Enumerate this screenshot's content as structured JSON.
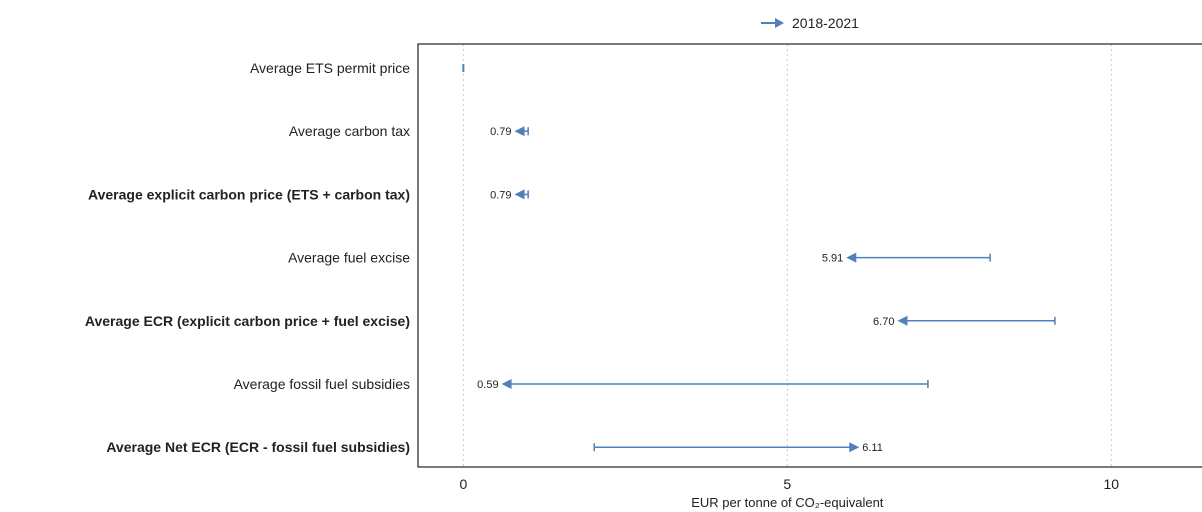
{
  "chart_data": {
    "type": "dumbbell-arrow",
    "legend": {
      "label": "2018-2021",
      "placement": "top-center"
    },
    "xlabel": "EUR per tonne of CO₂-equivalent",
    "xlim": [
      -0.7,
      11.4
    ],
    "xticks": [
      {
        "value": 0,
        "label": "0"
      },
      {
        "value": 5,
        "label": "5"
      },
      {
        "value": 10,
        "label": "10"
      }
    ],
    "grid": {
      "vertical": true
    },
    "categories": [
      {
        "label": "Average ETS permit price",
        "bold": false
      },
      {
        "label": "Average carbon tax",
        "bold": false
      },
      {
        "label": "Average explicit carbon price (ETS + carbon tax)",
        "bold": true
      },
      {
        "label": "Average fuel excise",
        "bold": false
      },
      {
        "label": "Average ECR (explicit carbon price + fuel excise)",
        "bold": true
      },
      {
        "label": "Average fossil fuel subsidies",
        "bold": false
      },
      {
        "label": "Average Net ECR (ECR - fossil fuel subsidies)",
        "bold": true
      }
    ],
    "series": [
      {
        "name": "2018-2021",
        "start_values": [
          0.0,
          1.0,
          1.0,
          8.13,
          9.13,
          7.17,
          2.02
        ],
        "end_values": [
          0.0,
          0.79,
          0.79,
          5.91,
          6.7,
          0.59,
          6.11
        ],
        "end_labels": [
          "",
          "0.79",
          "0.79",
          "5.91",
          "6.70",
          "0.59",
          "6.11"
        ]
      }
    ],
    "colors": {
      "series": "#4f81bd",
      "axis": "#333333",
      "grid": "#c8c8c8",
      "text": "#222222"
    }
  }
}
